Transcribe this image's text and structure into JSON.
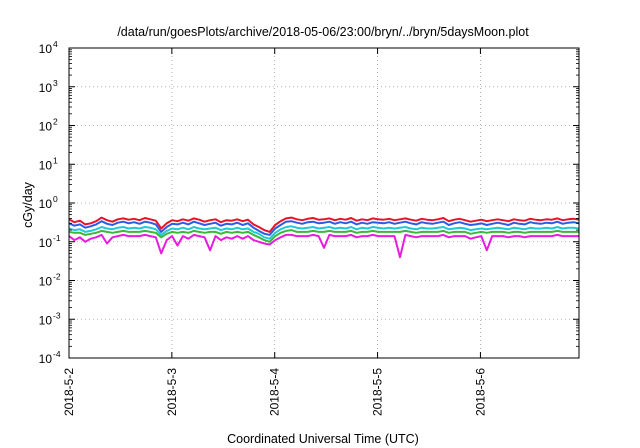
{
  "chart_data": {
    "type": "line",
    "title": "/data/run/goesPlots/archive/2018-05-06/23:00/bryn/../bryn/5daysMoon.plot",
    "xlabel": "Coordinated Universal Time (UTC)",
    "ylabel": "cGy/day",
    "y_scale": "log",
    "ylim": [
      0.0001,
      10000
    ],
    "y_ticks": [
      {
        "base": "10",
        "exp": "-4"
      },
      {
        "base": "10",
        "exp": "-3"
      },
      {
        "base": "10",
        "exp": "-2"
      },
      {
        "base": "10",
        "exp": "-1"
      },
      {
        "base": "10",
        "exp": "0"
      },
      {
        "base": "10",
        "exp": "1"
      },
      {
        "base": "10",
        "exp": "2"
      },
      {
        "base": "10",
        "exp": "3"
      },
      {
        "base": "10",
        "exp": "4"
      }
    ],
    "x_ticks": [
      "2018-5-2",
      "2018-5-3",
      "2018-5-4",
      "2018-5-5",
      "2018-5-6"
    ],
    "xlim": [
      "2018-05-02 00:00",
      "2018-05-06 23:00"
    ],
    "grid": true,
    "legend": "none",
    "series": [
      {
        "color": "#e8132a",
        "values": [
          0.38,
          0.32,
          0.35,
          0.28,
          0.3,
          0.34,
          0.42,
          0.36,
          0.33,
          0.38,
          0.4,
          0.37,
          0.39,
          0.36,
          0.41,
          0.38,
          0.35,
          0.22,
          0.3,
          0.36,
          0.34,
          0.38,
          0.35,
          0.4,
          0.37,
          0.33,
          0.36,
          0.38,
          0.32,
          0.36,
          0.35,
          0.38,
          0.34,
          0.37,
          0.28,
          0.24,
          0.2,
          0.18,
          0.27,
          0.34,
          0.4,
          0.42,
          0.38,
          0.36,
          0.39,
          0.41,
          0.37,
          0.38,
          0.4,
          0.36,
          0.39,
          0.37,
          0.41,
          0.35,
          0.38,
          0.36,
          0.4,
          0.38,
          0.37,
          0.39,
          0.36,
          0.38,
          0.4,
          0.37,
          0.35,
          0.39,
          0.37,
          0.36,
          0.38,
          0.41,
          0.34,
          0.37,
          0.39,
          0.36,
          0.33,
          0.35,
          0.37,
          0.34,
          0.36,
          0.38,
          0.36,
          0.34,
          0.38,
          0.36,
          0.35,
          0.39,
          0.37,
          0.36,
          0.38,
          0.37,
          0.4,
          0.36,
          0.38,
          0.39,
          0.37
        ]
      },
      {
        "color": "#2b5be8",
        "values": [
          0.3,
          0.26,
          0.28,
          0.23,
          0.25,
          0.28,
          0.34,
          0.29,
          0.27,
          0.31,
          0.33,
          0.3,
          0.32,
          0.29,
          0.33,
          0.31,
          0.28,
          0.18,
          0.24,
          0.29,
          0.28,
          0.31,
          0.28,
          0.33,
          0.3,
          0.27,
          0.29,
          0.31,
          0.26,
          0.29,
          0.28,
          0.31,
          0.27,
          0.3,
          0.23,
          0.19,
          0.16,
          0.15,
          0.22,
          0.27,
          0.33,
          0.34,
          0.31,
          0.29,
          0.32,
          0.33,
          0.3,
          0.31,
          0.33,
          0.29,
          0.32,
          0.3,
          0.33,
          0.28,
          0.31,
          0.29,
          0.32,
          0.31,
          0.3,
          0.32,
          0.29,
          0.31,
          0.33,
          0.3,
          0.28,
          0.32,
          0.3,
          0.29,
          0.31,
          0.33,
          0.27,
          0.3,
          0.32,
          0.29,
          0.27,
          0.28,
          0.3,
          0.27,
          0.29,
          0.31,
          0.29,
          0.27,
          0.31,
          0.29,
          0.28,
          0.32,
          0.3,
          0.29,
          0.31,
          0.3,
          0.33,
          0.29,
          0.31,
          0.32,
          0.3
        ]
      },
      {
        "color": "#1fc9d6",
        "values": [
          0.22,
          0.2,
          0.21,
          0.18,
          0.19,
          0.21,
          0.24,
          0.22,
          0.21,
          0.23,
          0.24,
          0.22,
          0.23,
          0.22,
          0.24,
          0.23,
          0.21,
          0.15,
          0.19,
          0.22,
          0.21,
          0.23,
          0.21,
          0.24,
          0.22,
          0.21,
          0.22,
          0.23,
          0.2,
          0.22,
          0.21,
          0.23,
          0.21,
          0.22,
          0.18,
          0.16,
          0.13,
          0.12,
          0.17,
          0.21,
          0.24,
          0.25,
          0.23,
          0.22,
          0.23,
          0.24,
          0.22,
          0.23,
          0.24,
          0.22,
          0.23,
          0.22,
          0.24,
          0.21,
          0.23,
          0.22,
          0.24,
          0.23,
          0.22,
          0.23,
          0.22,
          0.23,
          0.24,
          0.22,
          0.21,
          0.23,
          0.22,
          0.22,
          0.23,
          0.24,
          0.21,
          0.22,
          0.23,
          0.22,
          0.2,
          0.21,
          0.22,
          0.21,
          0.22,
          0.23,
          0.22,
          0.21,
          0.23,
          0.22,
          0.21,
          0.23,
          0.22,
          0.22,
          0.23,
          0.22,
          0.24,
          0.22,
          0.23,
          0.23,
          0.22
        ]
      },
      {
        "color": "#3ab83a",
        "values": [
          0.18,
          0.17,
          0.17,
          0.15,
          0.16,
          0.17,
          0.19,
          0.18,
          0.17,
          0.18,
          0.19,
          0.18,
          0.18,
          0.18,
          0.19,
          0.18,
          0.17,
          0.13,
          0.16,
          0.18,
          0.17,
          0.18,
          0.17,
          0.19,
          0.18,
          0.17,
          0.18,
          0.18,
          0.16,
          0.18,
          0.17,
          0.18,
          0.17,
          0.18,
          0.15,
          0.13,
          0.11,
          0.1,
          0.14,
          0.17,
          0.19,
          0.2,
          0.18,
          0.18,
          0.18,
          0.19,
          0.18,
          0.18,
          0.19,
          0.18,
          0.18,
          0.18,
          0.19,
          0.17,
          0.18,
          0.18,
          0.19,
          0.18,
          0.18,
          0.18,
          0.18,
          0.18,
          0.19,
          0.18,
          0.17,
          0.18,
          0.18,
          0.18,
          0.18,
          0.19,
          0.17,
          0.18,
          0.18,
          0.18,
          0.16,
          0.17,
          0.18,
          0.17,
          0.18,
          0.18,
          0.18,
          0.17,
          0.18,
          0.18,
          0.17,
          0.18,
          0.18,
          0.18,
          0.18,
          0.18,
          0.19,
          0.18,
          0.18,
          0.18,
          0.18
        ]
      },
      {
        "color": "#e81ce0",
        "values": [
          0.14,
          0.11,
          0.13,
          0.1,
          0.12,
          0.13,
          0.15,
          0.09,
          0.13,
          0.14,
          0.15,
          0.14,
          0.14,
          0.14,
          0.15,
          0.14,
          0.13,
          0.05,
          0.11,
          0.14,
          0.08,
          0.14,
          0.12,
          0.15,
          0.14,
          0.13,
          0.06,
          0.14,
          0.11,
          0.13,
          0.12,
          0.14,
          0.12,
          0.14,
          0.11,
          0.1,
          0.09,
          0.085,
          0.11,
          0.13,
          0.15,
          0.15,
          0.14,
          0.14,
          0.14,
          0.15,
          0.14,
          0.07,
          0.15,
          0.14,
          0.14,
          0.14,
          0.15,
          0.13,
          0.14,
          0.14,
          0.15,
          0.14,
          0.14,
          0.14,
          0.14,
          0.04,
          0.15,
          0.14,
          0.13,
          0.14,
          0.14,
          0.14,
          0.14,
          0.15,
          0.13,
          0.14,
          0.14,
          0.14,
          0.12,
          0.13,
          0.14,
          0.06,
          0.14,
          0.14,
          0.14,
          0.13,
          0.14,
          0.14,
          0.13,
          0.14,
          0.14,
          0.14,
          0.14,
          0.14,
          0.15,
          0.14,
          0.14,
          0.14,
          0.14
        ]
      }
    ]
  }
}
